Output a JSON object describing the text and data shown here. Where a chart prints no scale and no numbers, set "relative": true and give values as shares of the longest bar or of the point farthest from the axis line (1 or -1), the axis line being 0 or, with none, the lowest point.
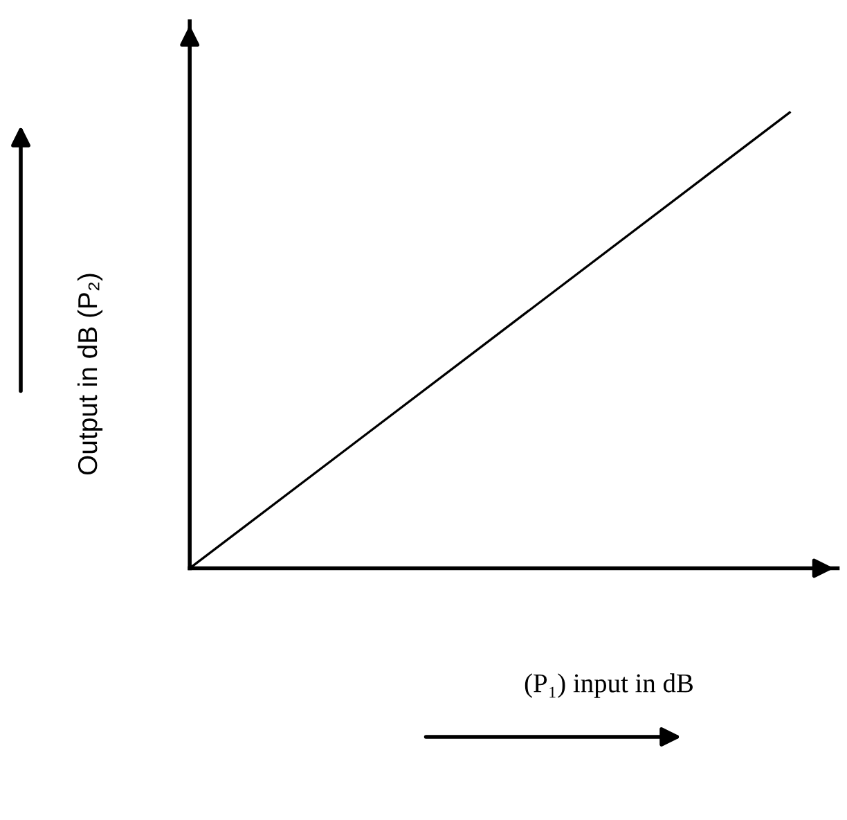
{
  "chart_data": {
    "type": "line",
    "relative": true,
    "categories": [
      null,
      null
    ],
    "xlabel": "(P₁) input in dB",
    "ylabel": "Output in dB (P₂)",
    "series": [
      {
        "color": "#000000",
        "values": [
          0,
          1
        ]
      }
    ],
    "legend": false
  }
}
